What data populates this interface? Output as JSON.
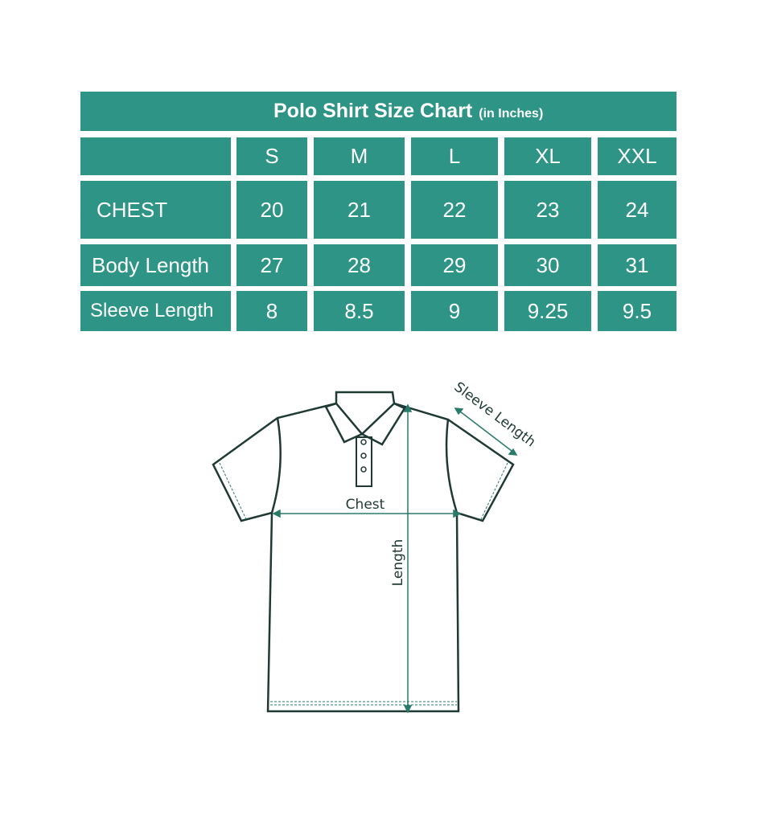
{
  "chart_data": {
    "type": "table",
    "title": "Polo Shirt Size Chart",
    "subtitle": "(in Inches)",
    "columns": [
      "S",
      "M",
      "L",
      "XL",
      "XXL"
    ],
    "rows": [
      {
        "label": "CHEST",
        "values": [
          "20",
          "21",
          "22",
          "23",
          "24"
        ]
      },
      {
        "label": "Body Length",
        "values": [
          "27",
          "28",
          "29",
          "30",
          "31"
        ]
      },
      {
        "label": "Sleeve Length",
        "values": [
          "8",
          "8.5",
          "9",
          "9.25",
          "9.5"
        ]
      }
    ]
  },
  "diagram": {
    "chest_label": "Chest",
    "length_label": "Length",
    "sleeve_label": "Sleeve Length"
  },
  "colors": {
    "teal": "#2e9485",
    "outline": "#1f3a35",
    "measure": "#2a7a6a"
  }
}
